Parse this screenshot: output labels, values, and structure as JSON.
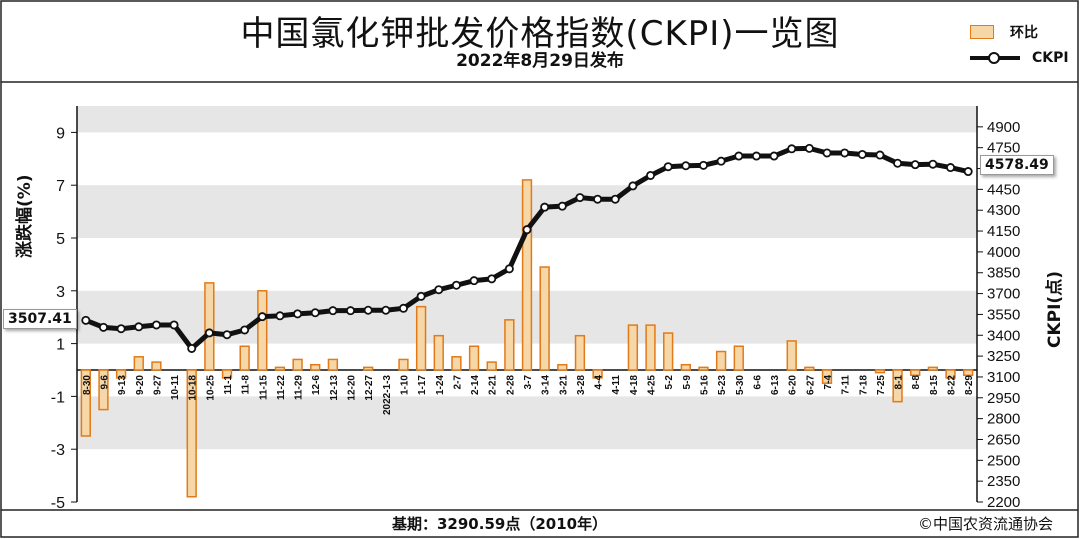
{
  "title": "中国氯化钾批发价格指数(CKPI)一览图",
  "subtitle": "2022年8月29日发布",
  "legend": {
    "bar_label": "环比",
    "line_label": "CKPI"
  },
  "footer": {
    "base": "基期：3290.59点（2010年）",
    "credit": "©中国农资流通协会"
  },
  "colors": {
    "bar_fill": "#f6d7a8",
    "bar_stroke": "#e07a1a",
    "line": "#111111",
    "plot_band": "#e6e6e6"
  },
  "chart_data": {
    "type": "bar+line",
    "title": "中国氯化钾批发价格指数(CKPI)一览图",
    "subtitle": "2022年8月29日发布",
    "ylabel_left": "涨跌幅(%)",
    "ylabel_right": "CKPI(点)",
    "ylim_left": [
      -5,
      10
    ],
    "yticks_left": [
      -5,
      -3,
      -1,
      1,
      3,
      5,
      7,
      9
    ],
    "ylim_right": [
      2200,
      5050
    ],
    "yticks_right": [
      2200,
      2350,
      2500,
      2650,
      2800,
      2950,
      3100,
      3250,
      3400,
      3550,
      3700,
      3850,
      4000,
      4150,
      4300,
      4450,
      4600,
      4750,
      4900
    ],
    "categories": [
      "8-30",
      "9-6",
      "9-13",
      "9-20",
      "9-27",
      "10-11",
      "10-18",
      "10-25",
      "11-1",
      "11-8",
      "11-15",
      "11-22",
      "11-29",
      "12-6",
      "12-13",
      "12-20",
      "12-27",
      "2022-1-3",
      "1-10",
      "1-17",
      "1-24",
      "2-7",
      "2-14",
      "2-21",
      "2-28",
      "3-7",
      "3-14",
      "3-21",
      "3-28",
      "4-4",
      "4-11",
      "4-18",
      "4-25",
      "5-2",
      "5-9",
      "5-16",
      "5-23",
      "5-30",
      "6-6",
      "6-13",
      "6-20",
      "6-27",
      "7-4",
      "7-11",
      "7-18",
      "7-25",
      "8-1",
      "8-8",
      "8-15",
      "8-22",
      "8-29"
    ],
    "series": [
      {
        "name": "环比",
        "type": "bar",
        "values": [
          -2.5,
          -1.5,
          -0.3,
          0.5,
          0.3,
          0.0,
          -4.8,
          3.3,
          -0.3,
          0.9,
          3.0,
          0.1,
          0.4,
          0.2,
          0.4,
          0.0,
          0.1,
          0.0,
          0.4,
          2.4,
          1.3,
          0.5,
          0.9,
          0.3,
          1.9,
          7.2,
          3.9,
          0.2,
          1.3,
          -0.3,
          0.0,
          1.7,
          1.7,
          1.4,
          0.2,
          0.1,
          0.7,
          0.9,
          0.0,
          0.0,
          1.1,
          0.1,
          -0.5,
          0.0,
          0.0,
          -0.1,
          -1.2,
          -0.2,
          0.1,
          -0.3,
          -0.2
        ]
      },
      {
        "name": "CKPI",
        "type": "line",
        "values": [
          3507.41,
          3457,
          3447,
          3461,
          3474,
          3474,
          3305,
          3417,
          3404,
          3438,
          3534,
          3540,
          3554,
          3562,
          3577,
          3577,
          3580,
          3580,
          3594,
          3680,
          3728,
          3760,
          3793,
          3806,
          3878,
          4160,
          4322,
          4329,
          4391,
          4379,
          4379,
          4475,
          4550,
          4613,
          4620,
          4623,
          4653,
          4690,
          4690,
          4690,
          4742,
          4745,
          4712,
          4712,
          4701,
          4697,
          4638,
          4628,
          4631,
          4607,
          4578.49
        ]
      }
    ],
    "value_labels": {
      "first": "3507.41",
      "last": "4578.49"
    }
  }
}
